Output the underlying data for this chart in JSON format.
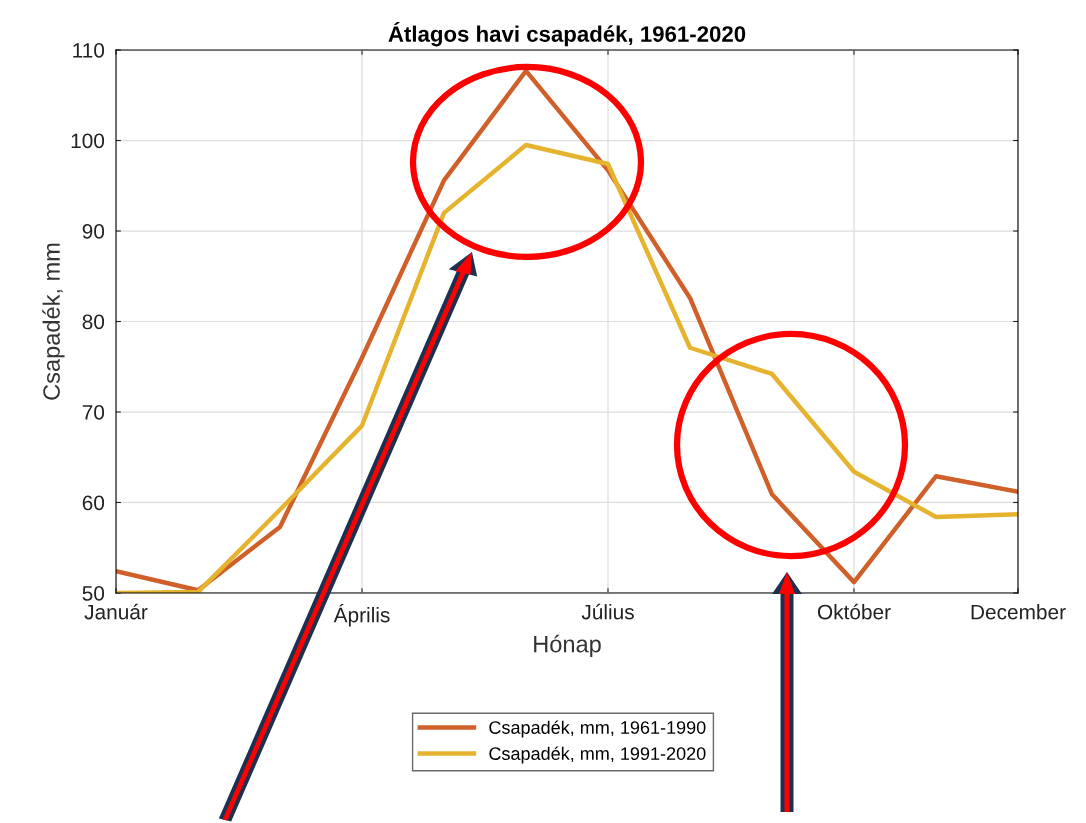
{
  "chart_data": {
    "type": "line",
    "title": "Átlagos havi csapadék, 1961-2020",
    "xlabel": "Hónap",
    "ylabel": "Csapadék, mm",
    "categories": [
      "Január",
      null,
      null,
      "Április",
      null,
      null,
      "Július",
      null,
      null,
      "Október",
      null,
      "December"
    ],
    "ylim": [
      50,
      110
    ],
    "yticks": [
      50,
      60,
      70,
      80,
      90,
      100,
      110
    ],
    "grid": true,
    "legend": "bottom",
    "marker": "none",
    "line_style": "solid",
    "series": [
      {
        "name": "Csapadék, mm, 1961-1990",
        "color": "#d0602a",
        "values": [
          52.4,
          50.3,
          57.3,
          76,
          95.6,
          107.7,
          96.7,
          82.6,
          60.9,
          51.2,
          62.9,
          61.2
        ]
      },
      {
        "name": "Csapadék, mm, 1991-2020",
        "color": "#e6b32e",
        "values": [
          50.0,
          50.1,
          59.2,
          68.5,
          92,
          99.5,
          97.4,
          77.1,
          74.2,
          63.4,
          58.4,
          58.7
        ]
      }
    ]
  }
}
